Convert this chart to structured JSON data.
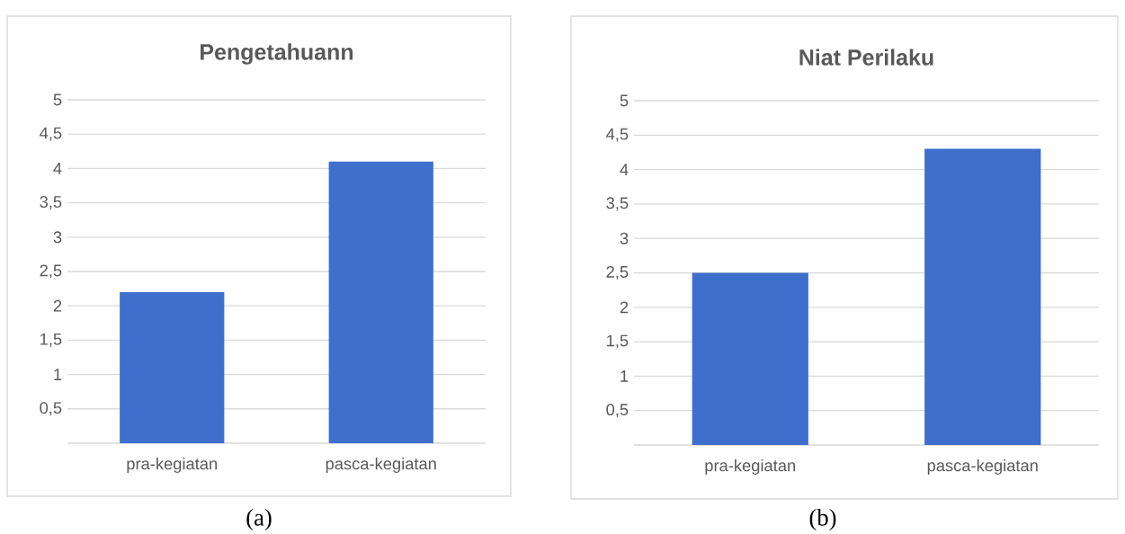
{
  "chart_data": [
    {
      "type": "bar",
      "title": "Pengetahuann",
      "categories": [
        "pra-kegiatan",
        "pasca-kegiatan"
      ],
      "values": [
        2.2,
        4.1
      ],
      "color": "#3f6fcc",
      "ylim": [
        0,
        5
      ],
      "yticks": [
        {
          "value": 0.5,
          "label": "0,5"
        },
        1,
        {
          "value": 1.5,
          "label": "1,5"
        },
        2,
        {
          "value": 2.5,
          "label": "2,5"
        },
        3,
        {
          "value": 3.5,
          "label": "3,5"
        },
        4,
        {
          "value": 4.5,
          "label": "4,5"
        },
        5
      ],
      "grid": "y",
      "annotations": [
        "(a)"
      ]
    },
    {
      "type": "bar",
      "title": "Niat Perilaku",
      "categories": [
        "pra-kegiatan",
        "pasca-kegiatan"
      ],
      "values": [
        2.5,
        4.3
      ],
      "color": "#3f6fcc",
      "ylim": [
        0,
        5
      ],
      "yticks": [
        {
          "value": 0.5,
          "label": "0,5"
        },
        1,
        {
          "value": 1.5,
          "label": "1,5"
        },
        2,
        {
          "value": 2.5,
          "label": "2,5"
        },
        3,
        {
          "value": 3.5,
          "label": "3,5"
        },
        4,
        {
          "value": 4.5,
          "label": "4,5"
        },
        5
      ],
      "grid": "y",
      "annotations": [
        "(b)"
      ]
    }
  ]
}
